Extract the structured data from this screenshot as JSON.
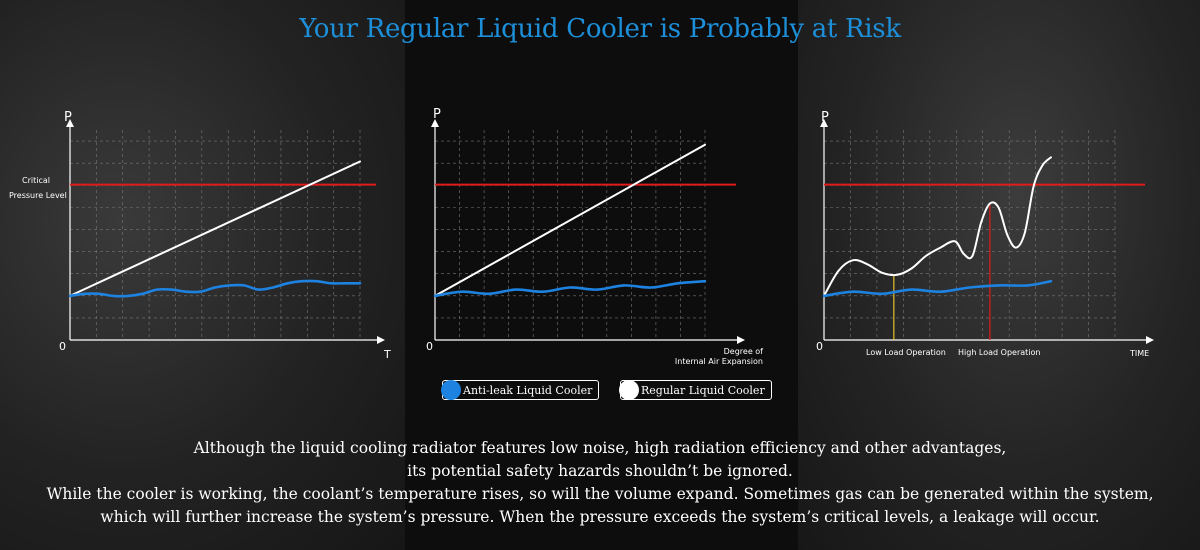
{
  "title": "Your Regular Liquid Cooler is Probably at Risk",
  "colors": {
    "title": "#1d8fd8",
    "blue": "#1e82e0",
    "critical": "#e01b1b",
    "white": "#ffffff",
    "low_marker": "#e6c12a",
    "high_marker": "#e01b1b"
  },
  "legend": {
    "anti_leak": "Anti-leak Liquid Cooler",
    "regular": "Regular Liquid Cooler"
  },
  "paragraph": {
    "line1": "Although the liquid cooling radiator features low noise, high radiation efficiency and other advantages,",
    "line2": "its potential safety hazards shouldn’t be ignored.",
    "line3": "While the cooler is working, the coolant’s temperature rises, so will the volume expand. Sometimes gas can be generated within the system,",
    "line4": "which will further increase the system’s pressure. When the pressure exceeds the system’s critical levels, a leakage will occur."
  },
  "chart_data": [
    {
      "type": "line",
      "y_axis_label": "P",
      "x_axis_label": "T",
      "origin_label": "0",
      "critical_label_1": "Critical",
      "critical_label_2": "Pressure Level",
      "xlim": [
        0,
        10
      ],
      "ylim": [
        0,
        10
      ],
      "critical_level": 7.4,
      "series": [
        {
          "name": "Regular Liquid Cooler",
          "x": [
            0,
            10
          ],
          "y": [
            2.1,
            8.5
          ]
        },
        {
          "name": "Anti-leak Liquid Cooler",
          "x": [
            0,
            0.5,
            1,
            1.5,
            2,
            2.5,
            3,
            3.5,
            4,
            4.5,
            5,
            5.5,
            6,
            6.5,
            7,
            7.5,
            8,
            8.5,
            9,
            9.5,
            10
          ],
          "y": [
            2.1,
            2.2,
            2.2,
            2.1,
            2.1,
            2.2,
            2.4,
            2.4,
            2.3,
            2.3,
            2.5,
            2.6,
            2.6,
            2.4,
            2.5,
            2.7,
            2.8,
            2.8,
            2.7,
            2.7,
            2.7
          ]
        }
      ]
    },
    {
      "type": "line",
      "y_axis_label": "P",
      "x_axis_label_1": "Degree of",
      "x_axis_label_2": "Internal Air Expansion",
      "origin_label": "0",
      "xlim": [
        0,
        10
      ],
      "ylim": [
        0,
        10
      ],
      "critical_level": 7.4,
      "series": [
        {
          "name": "Regular Liquid Cooler",
          "x": [
            0,
            10
          ],
          "y": [
            2.1,
            9.3
          ]
        },
        {
          "name": "Anti-leak Liquid Cooler",
          "x": [
            0,
            1,
            2,
            3,
            4,
            5,
            6,
            7,
            8,
            9,
            10
          ],
          "y": [
            2.1,
            2.3,
            2.2,
            2.4,
            2.3,
            2.5,
            2.4,
            2.6,
            2.5,
            2.7,
            2.8
          ]
        }
      ]
    },
    {
      "type": "line",
      "y_axis_label": "P",
      "x_axis_label": "TIME",
      "origin_label": "0",
      "low_load_label": "Low Load Operation",
      "high_load_label": "High Load Operation",
      "xlim": [
        0,
        10
      ],
      "ylim": [
        0,
        10
      ],
      "critical_level": 7.4,
      "low_load_x": 2.4,
      "high_load_x": 5.7,
      "series": [
        {
          "name": "Regular Liquid Cooler",
          "x": [
            0,
            0.5,
            1,
            1.5,
            2,
            2.5,
            3,
            3.5,
            4,
            4.5,
            4.8,
            5.1,
            5.4,
            5.7,
            6,
            6.3,
            6.6,
            6.9,
            7.2,
            7.5,
            7.8
          ],
          "y": [
            2.1,
            3.3,
            3.8,
            3.6,
            3.2,
            3.1,
            3.4,
            4.0,
            4.4,
            4.7,
            4.1,
            4.0,
            5.6,
            6.5,
            6.3,
            5.0,
            4.4,
            5.1,
            7.3,
            8.3,
            8.7
          ]
        },
        {
          "name": "Anti-leak Liquid Cooler",
          "x": [
            0,
            1,
            2,
            3,
            4,
            5,
            6,
            7,
            7.8
          ],
          "y": [
            2.1,
            2.3,
            2.2,
            2.4,
            2.3,
            2.5,
            2.6,
            2.6,
            2.8
          ]
        }
      ]
    }
  ]
}
